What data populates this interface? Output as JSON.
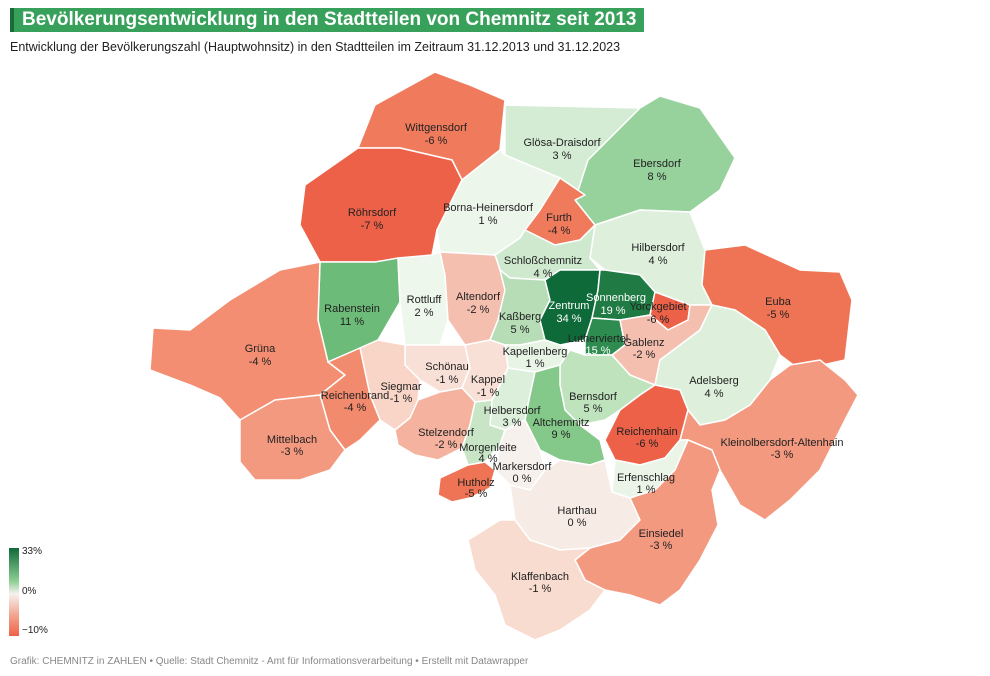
{
  "title": "Bevölkerungsentwicklung in den Stadtteilen von Chemnitz seit 2013",
  "subtitle": "Entwicklung der Bevölkerungszahl (Hauptwohnsitz) in den Stadtteilen im Zeitraum 31.12.2013 und 31.12.2023",
  "legend": {
    "max": "33%",
    "mid": "0%",
    "min": "−10%"
  },
  "footer": "Grafik: CHEMNITZ in ZAHLEN • Quelle: Stadt Chemnitz - Amt für Informationsverarbeitung • Erstellt mit Datawrapper",
  "colors": {
    "title_bg": "#37a05a",
    "strong_positive": "#0f6a3a",
    "negative": "#ef6148",
    "neutral": "#f7f1ee"
  },
  "districts": [
    {
      "name": "Wittgensdorf",
      "value": "-6 %"
    },
    {
      "name": "Glösa-Draisdorf",
      "value": "3 %"
    },
    {
      "name": "Ebersdorf",
      "value": "8 %"
    },
    {
      "name": "Röhrsdorf",
      "value": "-7 %"
    },
    {
      "name": "Borna-Heinersdorf",
      "value": "1 %"
    },
    {
      "name": "Furth",
      "value": "-4 %"
    },
    {
      "name": "Hilbersdorf",
      "value": "4 %"
    },
    {
      "name": "Schloßchemnitz",
      "value": "4 %"
    },
    {
      "name": "Rabenstein",
      "value": "11 %"
    },
    {
      "name": "Rottluff",
      "value": "2 %"
    },
    {
      "name": "Altendorf",
      "value": "-2 %"
    },
    {
      "name": "Kaßberg",
      "value": "5 %"
    },
    {
      "name": "Zentrum",
      "value": "34 %"
    },
    {
      "name": "Sonnenberg",
      "value": "19 %"
    },
    {
      "name": "Yorckgebiet",
      "value": "-6 %"
    },
    {
      "name": "Euba",
      "value": "-5 %"
    },
    {
      "name": "Grüna",
      "value": "-4 %"
    },
    {
      "name": "Lutherviertel",
      "value": "15 %"
    },
    {
      "name": "Gablenz",
      "value": "-2 %"
    },
    {
      "name": "Kapellenberg",
      "value": "1 %"
    },
    {
      "name": "Schönau",
      "value": "-1 %"
    },
    {
      "name": "Siegmar",
      "value": "-1 %"
    },
    {
      "name": "Kappel",
      "value": "-1 %"
    },
    {
      "name": "Adelsberg",
      "value": "4 %"
    },
    {
      "name": "Reichenbrand",
      "value": "-4 %"
    },
    {
      "name": "Bernsdorf",
      "value": "5 %"
    },
    {
      "name": "Helbersdorf",
      "value": "3 %"
    },
    {
      "name": "Altchemnitz",
      "value": "9 %"
    },
    {
      "name": "Reichenhain",
      "value": "-6 %"
    },
    {
      "name": "Mittelbach",
      "value": "-3 %"
    },
    {
      "name": "Stelzendorf",
      "value": "-2 %"
    },
    {
      "name": "Kleinolbersdorf-Altenhain",
      "value": "-3 %"
    },
    {
      "name": "Morgenleite",
      "value": "4 %"
    },
    {
      "name": "Markersdorf",
      "value": "0 %"
    },
    {
      "name": "Hutholz",
      "value": "-5 %"
    },
    {
      "name": "Erfenschlag",
      "value": "1 %"
    },
    {
      "name": "Harthau",
      "value": "0 %"
    },
    {
      "name": "Einsiedel",
      "value": "-3 %"
    },
    {
      "name": "Klaffenbach",
      "value": "-1 %"
    }
  ]
}
